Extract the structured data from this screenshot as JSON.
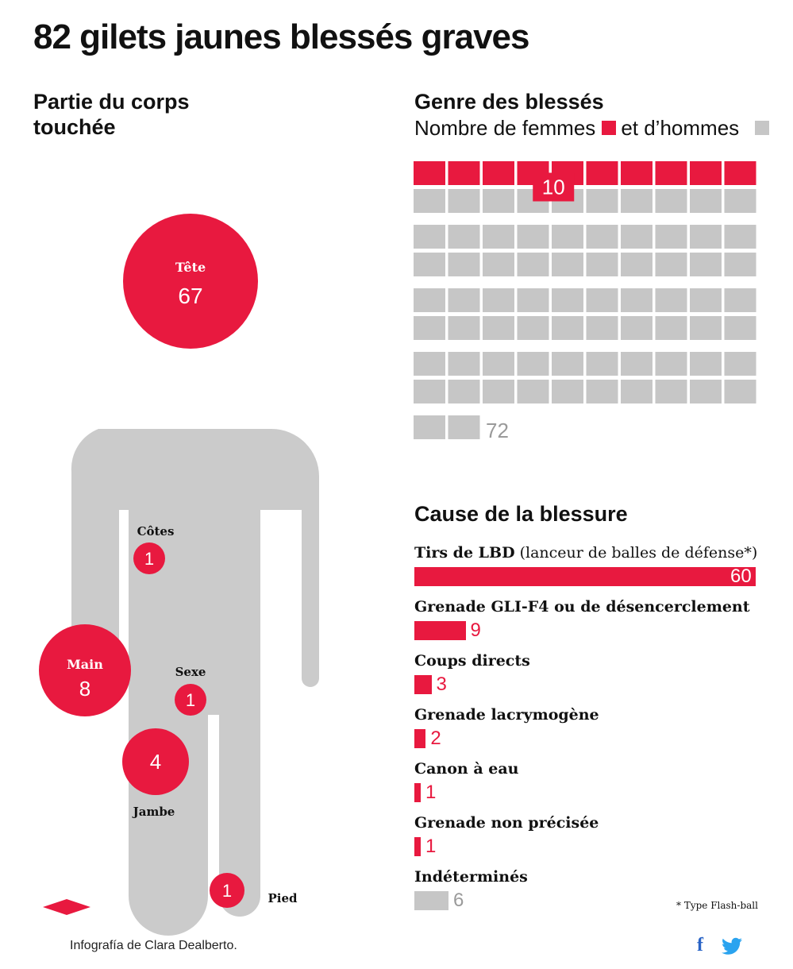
{
  "title": "82 gilets jaunes blessés graves",
  "body_section": {
    "title_line1": "Partie du corps",
    "title_line2": "touchée"
  },
  "gender_section": {
    "title": "Genre des blessés",
    "subtitle_women": "Nombre de femmes",
    "subtitle_men": "et d’hommes"
  },
  "cause_section": {
    "title": "Cause de la blessure",
    "footnote": "* Type Flash-ball"
  },
  "credit": "Infografía de Clara Dealberto.",
  "icons": {
    "facebook": "facebook-icon",
    "twitter": "twitter-icon",
    "diamond": "diamond-icon"
  },
  "colors": {
    "accent": "#e8193f",
    "grey": "#c6c6c6",
    "figure": "#cbcbcb"
  },
  "chart_data": [
    {
      "type": "bubble",
      "title": "Partie du corps touchée",
      "categories": [
        "Tête",
        "Main",
        "Jambe",
        "Côtes",
        "Sexe",
        "Pied"
      ],
      "values": [
        67,
        8,
        4,
        1,
        1,
        1
      ]
    },
    {
      "type": "waffle",
      "title": "Genre des blessés",
      "series": [
        {
          "name": "Nombre de femmes",
          "values": [
            10
          ],
          "color": "#e8193f"
        },
        {
          "name": "et d’hommes",
          "values": [
            72
          ],
          "color": "#c6c6c6"
        }
      ]
    },
    {
      "type": "bar",
      "title": "Cause de la blessure",
      "categories": [
        "Tirs de LBD",
        "Grenade GLI-F4 ou de désencerclement",
        "Coups directs",
        "Grenade lacrymogène",
        "Canon à eau",
        "Grenade non précisée",
        "Indéterminés"
      ],
      "notes": [
        "(lanceur de balles de défense*)",
        "",
        "",
        "",
        "",
        "",
        ""
      ],
      "values": [
        60,
        9,
        3,
        2,
        1,
        1,
        6
      ],
      "colors": [
        "#e8193f",
        "#e8193f",
        "#e8193f",
        "#e8193f",
        "#e8193f",
        "#e8193f",
        "#c6c6c6"
      ],
      "value_label_inside": [
        true,
        false,
        false,
        false,
        false,
        false,
        false
      ]
    }
  ]
}
